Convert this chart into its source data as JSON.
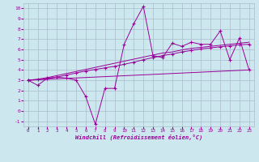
{
  "bg_color": "#cce8ee",
  "grid_color": "#aabbcc",
  "line_color": "#990099",
  "xlabel": "Windchill (Refroidissement éolien,°C)",
  "xlim": [
    -0.5,
    23.5
  ],
  "ylim": [
    -1.5,
    10.5
  ],
  "xticks": [
    0,
    1,
    2,
    3,
    4,
    5,
    6,
    7,
    8,
    9,
    10,
    11,
    12,
    13,
    14,
    15,
    16,
    17,
    18,
    19,
    20,
    21,
    22,
    23
  ],
  "yticks": [
    -1,
    0,
    1,
    2,
    3,
    4,
    5,
    6,
    7,
    8,
    9,
    10
  ],
  "series1_x": [
    0,
    1,
    2,
    3,
    4,
    5,
    6,
    7,
    8,
    9,
    10,
    11,
    12,
    13,
    14,
    15,
    16,
    17,
    18,
    19,
    20,
    21,
    22,
    23
  ],
  "series1_y": [
    3.0,
    2.5,
    3.2,
    3.3,
    3.2,
    3.0,
    1.4,
    -1.3,
    2.2,
    2.2,
    6.5,
    8.5,
    10.2,
    5.4,
    5.2,
    6.6,
    6.3,
    6.7,
    6.5,
    6.5,
    7.8,
    5.0,
    7.1,
    4.0
  ],
  "series2_x": [
    0,
    1,
    2,
    3,
    4,
    5,
    6,
    7,
    8,
    9,
    10,
    11,
    12,
    13,
    14,
    15,
    16,
    17,
    18,
    19,
    20,
    21,
    22,
    23
  ],
  "series2_y": [
    3.0,
    3.05,
    3.15,
    3.3,
    3.5,
    3.7,
    3.9,
    4.05,
    4.2,
    4.35,
    4.55,
    4.75,
    5.0,
    5.2,
    5.4,
    5.55,
    5.75,
    5.9,
    6.05,
    6.15,
    6.25,
    6.35,
    6.45,
    6.5
  ],
  "series3_x": [
    0,
    1,
    2,
    3,
    4,
    5,
    6,
    7,
    8,
    9,
    10,
    11,
    12,
    13,
    14,
    15,
    16,
    17,
    18,
    19,
    20,
    21,
    22,
    23
  ],
  "series3_y": [
    3.0,
    3.1,
    3.25,
    3.45,
    3.65,
    3.85,
    4.05,
    4.25,
    4.45,
    4.65,
    4.85,
    5.05,
    5.25,
    5.45,
    5.65,
    5.75,
    5.95,
    6.1,
    6.2,
    6.3,
    6.4,
    6.5,
    6.6,
    6.7
  ],
  "series4_x": [
    0,
    23
  ],
  "series4_y": [
    3.0,
    4.0
  ]
}
